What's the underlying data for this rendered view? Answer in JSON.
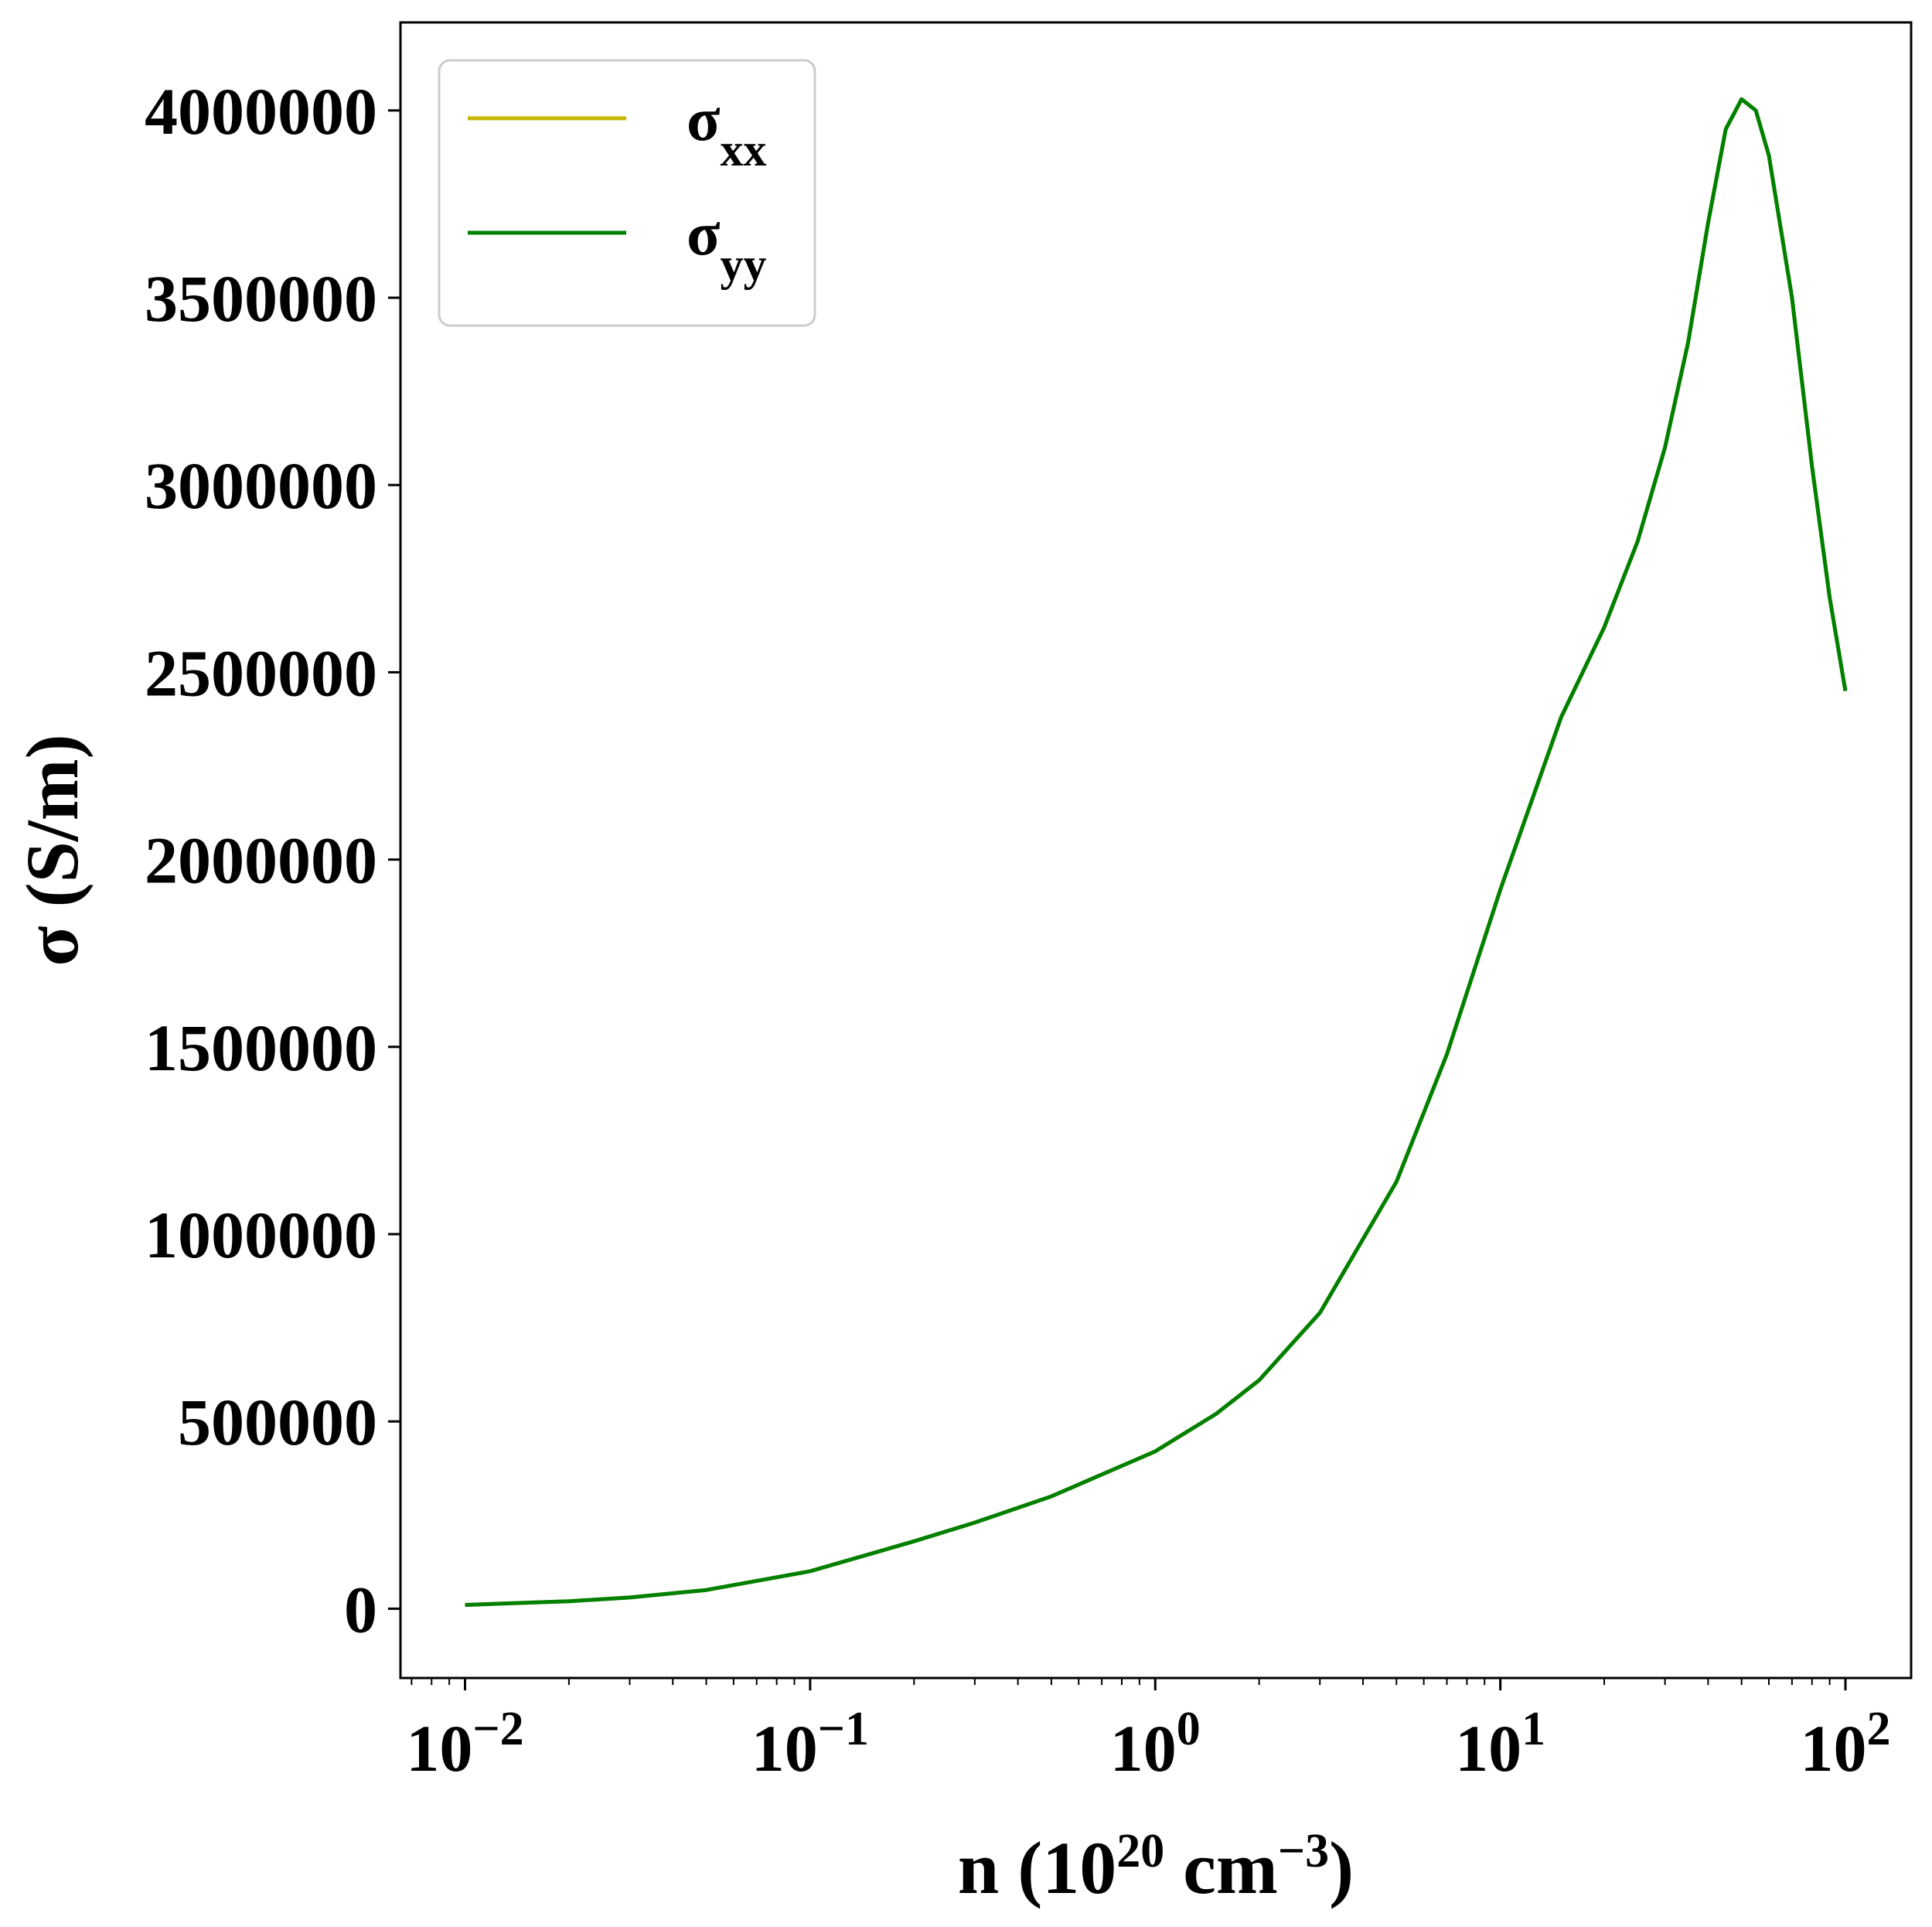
{
  "chart_data": {
    "type": "line",
    "xscale": "log",
    "xlim": [
      0.0065,
      155
    ],
    "ylim": [
      -185000,
      4235000
    ],
    "xticks": [
      {
        "value": 0.01,
        "base": "10",
        "exp": "−2"
      },
      {
        "value": 0.1,
        "base": "10",
        "exp": "−1"
      },
      {
        "value": 1,
        "base": "10",
        "exp": "0"
      },
      {
        "value": 10,
        "base": "10",
        "exp": "1"
      },
      {
        "value": 100,
        "base": "10",
        "exp": "2"
      }
    ],
    "yticks": [
      0,
      500000,
      1000000,
      1500000,
      2000000,
      2500000,
      3000000,
      3500000,
      4000000
    ],
    "ytick_labels": [
      "0",
      "500000",
      "1000000",
      "1500000",
      "2000000",
      "2500000",
      "3000000",
      "3500000",
      "4000000"
    ],
    "xlabel": {
      "prefix": "n (10",
      "sup1": "20",
      "mid": " cm",
      "sup2": "−3",
      "suffix": ")"
    },
    "ylabel": "σ (S/m)",
    "grid": false,
    "legend_position": "top-left",
    "series": [
      {
        "name": "σ",
        "name_sub": "xx",
        "color": "#c8b400",
        "x": [
          0.01,
          0.02,
          0.03,
          0.05,
          0.1,
          0.2,
          0.3,
          0.5,
          1,
          1.5,
          2,
          3,
          5,
          7,
          10,
          15,
          20,
          25,
          30,
          35,
          40,
          45,
          50,
          55,
          60,
          70,
          80,
          90,
          100
        ],
        "y": [
          10000,
          20000,
          30000,
          50000,
          100000,
          180000,
          230000,
          300000,
          420000,
          520000,
          610000,
          790000,
          1140000,
          1480000,
          1920000,
          2380000,
          2620000,
          2850000,
          3100000,
          3380000,
          3700000,
          3950000,
          4030000,
          4000000,
          3880000,
          3500000,
          3050000,
          2700000,
          2450000
        ]
      },
      {
        "name": "σ",
        "name_sub": "yy",
        "color": "#008000",
        "x": [
          0.01,
          0.02,
          0.03,
          0.05,
          0.1,
          0.2,
          0.3,
          0.5,
          1,
          1.5,
          2,
          3,
          5,
          7,
          10,
          15,
          20,
          25,
          30,
          35,
          40,
          45,
          50,
          55,
          60,
          70,
          80,
          90,
          100
        ],
        "y": [
          10000,
          20000,
          30000,
          50000,
          100000,
          180000,
          230000,
          300000,
          420000,
          520000,
          610000,
          790000,
          1140000,
          1480000,
          1920000,
          2380000,
          2620000,
          2850000,
          3100000,
          3380000,
          3700000,
          3950000,
          4030000,
          4000000,
          3880000,
          3500000,
          3050000,
          2700000,
          2450000
        ]
      }
    ]
  }
}
